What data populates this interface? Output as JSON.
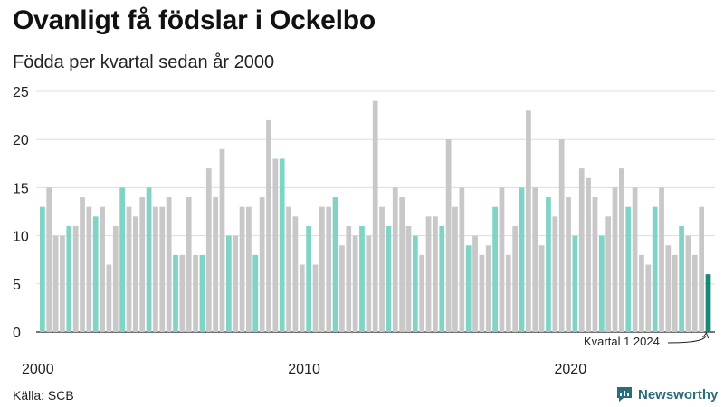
{
  "title": "Ovanligt få födslar i Ockelbo",
  "subtitle": "Födda per kvartal sedan år 2000",
  "source": "Källa: SCB",
  "brand": {
    "name": "Newsworthy",
    "color": "#2b6c7c"
  },
  "colors": {
    "q1": "#7fd4c6",
    "other": "#c8c8c8",
    "latest": "#168a76",
    "grid": "#dddddd",
    "axis": "#222222"
  },
  "chart_data": {
    "type": "bar",
    "title": "Ovanligt få födslar i Ockelbo",
    "subtitle": "Födda per kvartal sedan år 2000",
    "ylim": [
      0,
      25
    ],
    "yticks": [
      0,
      5,
      10,
      15,
      20,
      25
    ],
    "xticks": [
      {
        "label": "2000",
        "index": 0
      },
      {
        "label": "2010",
        "index": 40
      },
      {
        "label": "2020",
        "index": 80
      }
    ],
    "start_year": 2000,
    "grid": true,
    "highlight": "Första kvartalet varje år i turkos",
    "annotation": {
      "text": "Kvartal 1 2024",
      "index": 100
    },
    "values": [
      13,
      15,
      10,
      10,
      11,
      11,
      14,
      13,
      12,
      13,
      7,
      11,
      15,
      13,
      12,
      14,
      15,
      13,
      13,
      14,
      8,
      8,
      14,
      8,
      8,
      17,
      14,
      19,
      10,
      10,
      13,
      13,
      8,
      14,
      22,
      18,
      18,
      13,
      12,
      7,
      11,
      7,
      13,
      13,
      14,
      9,
      11,
      10,
      11,
      10,
      24,
      13,
      11,
      15,
      14,
      11,
      10,
      8,
      12,
      12,
      11,
      20,
      13,
      15,
      9,
      10,
      8,
      9,
      13,
      15,
      8,
      11,
      15,
      23,
      15,
      9,
      14,
      12,
      20,
      14,
      10,
      17,
      16,
      14,
      10,
      12,
      15,
      17,
      13,
      15,
      8,
      7,
      13,
      15,
      9,
      8,
      11,
      10,
      8,
      13,
      6
    ]
  }
}
